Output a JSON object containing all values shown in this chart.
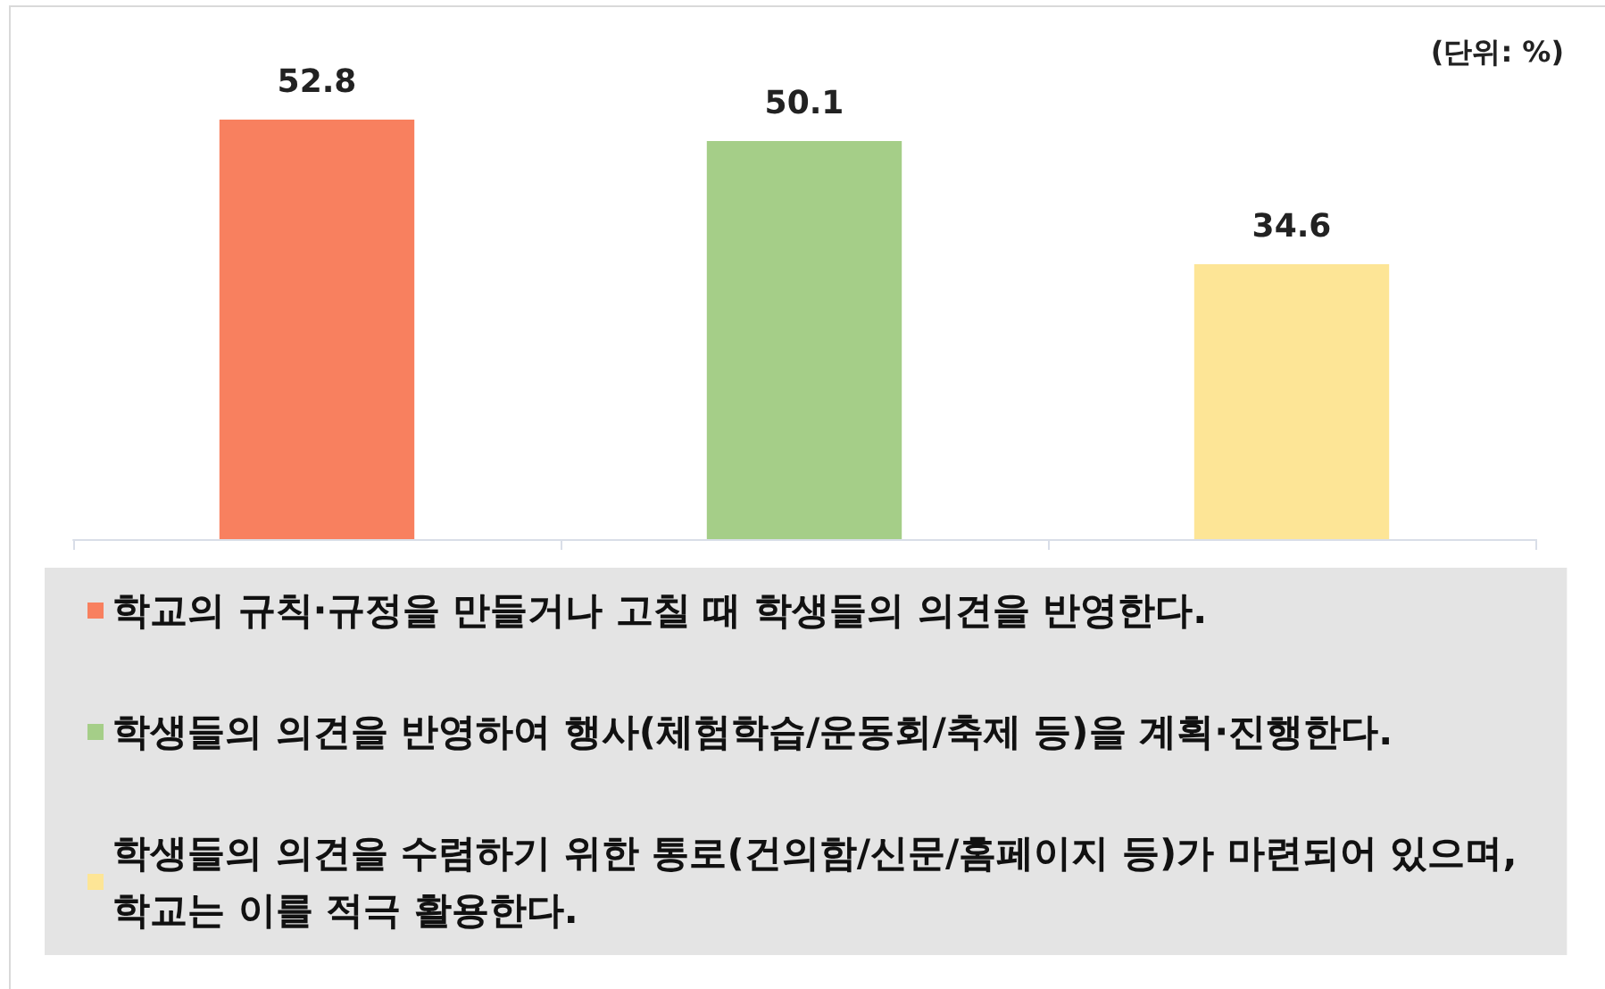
{
  "chart_data": {
    "type": "bar",
    "categories": [
      null,
      null,
      null
    ],
    "series": [
      {
        "name": "학교의 규칙·규정을 만들거나 고칠 때 학생들의 의견을 반영한다.",
        "color": "#f8805f",
        "values": [
          52.8,
          null,
          null
        ]
      },
      {
        "name": "학생들의 의견을 반영하여 행사(체험학습/운동회/축제 등)을 계획·진행한다.",
        "color": "#a5ce88",
        "values": [
          null,
          50.1,
          null
        ]
      },
      {
        "name": "학생들의 의견을 수렴하기 위한 통로(건의함/신문/홈페이지 등)가 마련되어 있으며, 학교는 이를 적극 활용한다.",
        "color": "#fde596",
        "values": [
          null,
          null,
          34.6
        ]
      }
    ],
    "stacked": true,
    "annotations": [
      "(단위: %)"
    ],
    "data_labels": true,
    "legend": "bottom",
    "tick_labels": false
  }
}
